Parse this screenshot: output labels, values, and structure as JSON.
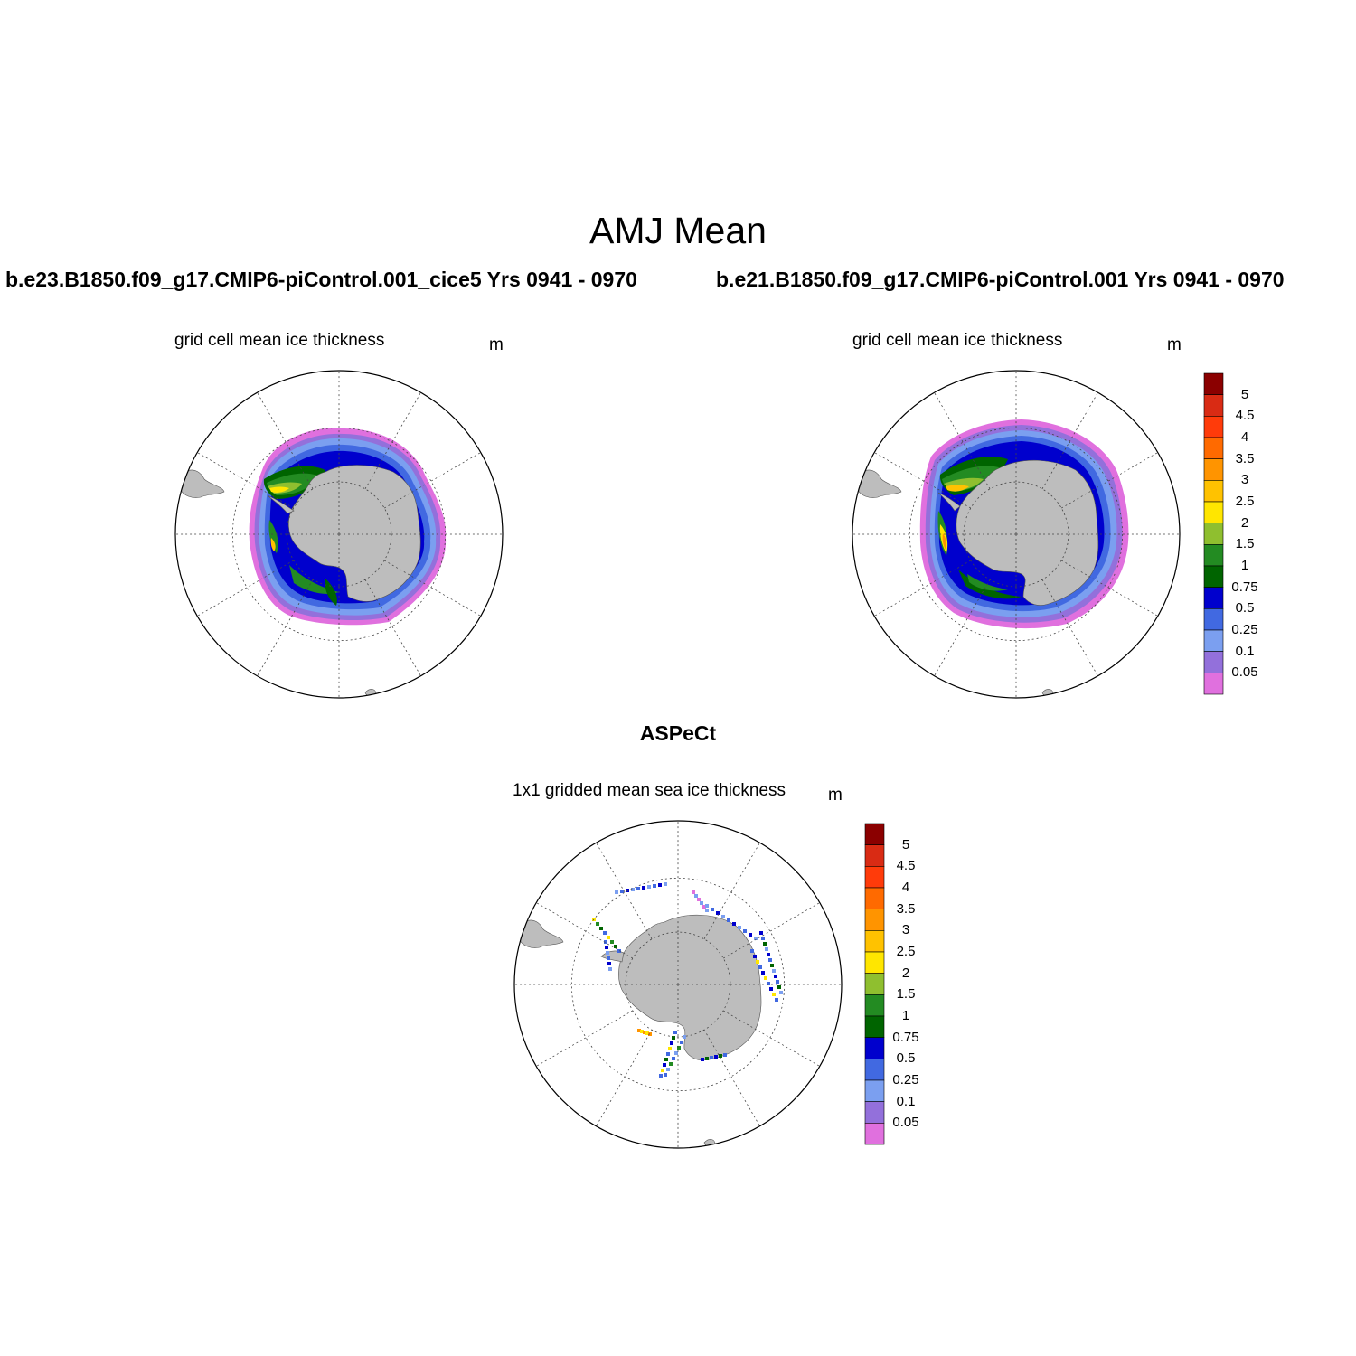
{
  "figure": {
    "title": "AMJ Mean",
    "left_case": "b.e23.B1850.f09_g17.CMIP6-piControl.001_cice5  Yrs 0941 - 0970",
    "right_case": "b.e21.B1850.f09_g17.CMIP6-piControl.001  Yrs 0941 - 0970",
    "obs_title": "ASPeCt"
  },
  "panels": [
    {
      "id": "left",
      "subtitle": "grid cell mean ice thickness",
      "unit": "m"
    },
    {
      "id": "right",
      "subtitle": "grid cell mean ice thickness",
      "unit": "m"
    },
    {
      "id": "obs",
      "subtitle": "1x1 gridded mean sea ice thickness",
      "unit": "m"
    }
  ],
  "colorbar": {
    "labels": [
      "5",
      "4.5",
      "4",
      "3.5",
      "3",
      "2.5",
      "2",
      "1.5",
      "1",
      "0.75",
      "0.5",
      "0.25",
      "0.1",
      "0.05"
    ],
    "colors": [
      "#8b0000",
      "#d92b14",
      "#ff3b0a",
      "#ff6a00",
      "#ff9400",
      "#ffc200",
      "#ffe600",
      "#8fbf2f",
      "#238b22",
      "#006400",
      "#0000cd",
      "#4169e1",
      "#7b9ff0",
      "#9370db",
      "#e070de"
    ]
  },
  "map_colors": {
    "land": "#bdbdbd",
    "thin_edge": "#e070de",
    "band_light": "#7b9ff0",
    "band_mid": "#4169e1",
    "band_dark": "#0000cd",
    "thick_green": "#006400",
    "green": "#238b22",
    "yellow": "#ffe600",
    "orange": "#ff9400"
  }
}
